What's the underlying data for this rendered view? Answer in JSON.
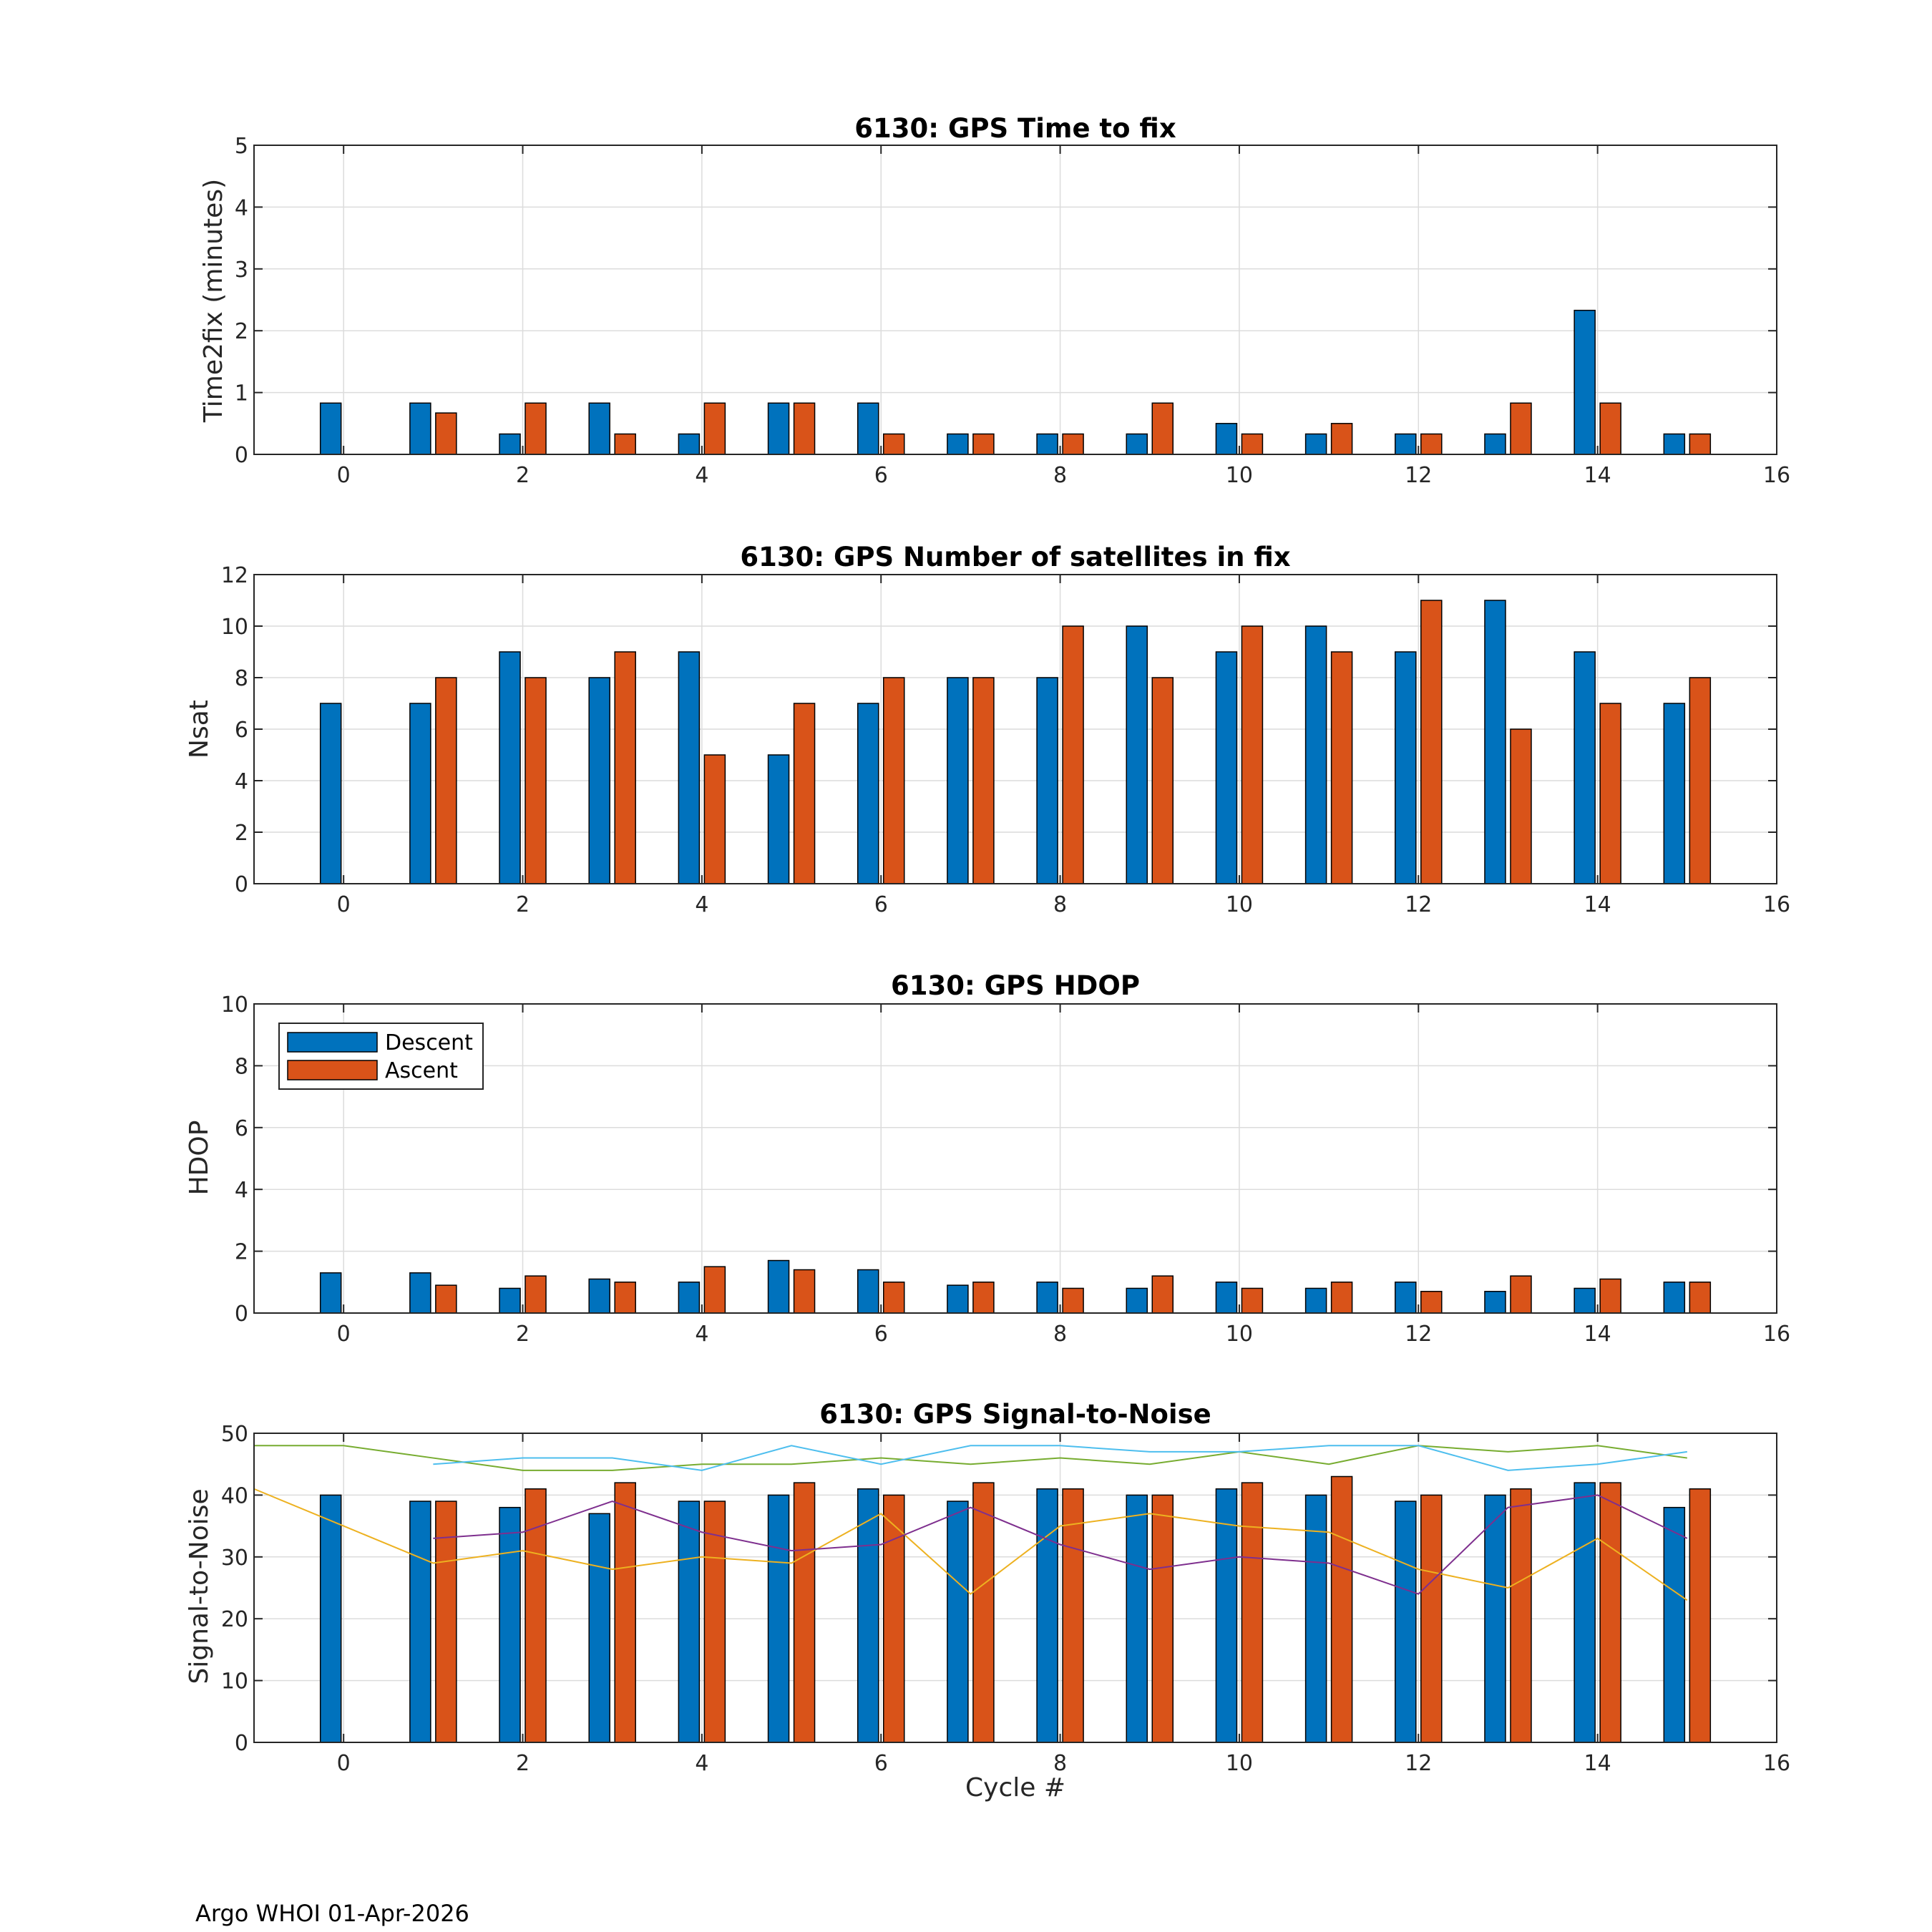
{
  "figure_title": "",
  "footer": "Argo WHOI 01-Apr-2026",
  "colors": {
    "descent": "#0072BD",
    "ascent": "#D95319",
    "snr_lines": [
      "#EDB120",
      "#7E2F8E",
      "#77AC30",
      "#4DBEEE"
    ]
  },
  "chart_data": [
    {
      "type": "bar",
      "title": "6130: GPS Time to fix",
      "xlabel": "",
      "ylabel": "Time2fix (minutes)",
      "xlim": [
        -1,
        16
      ],
      "ylim": [
        0,
        5
      ],
      "xticks": [
        0,
        2,
        4,
        6,
        8,
        10,
        12,
        14,
        16
      ],
      "yticks": [
        0,
        1,
        2,
        3,
        4,
        5
      ],
      "grid": true,
      "categories": [
        0,
        1,
        2,
        3,
        4,
        5,
        6,
        7,
        8,
        9,
        10,
        11,
        12,
        13,
        14,
        15
      ],
      "series": [
        {
          "name": "Descent",
          "values": [
            0.83,
            0.83,
            0.33,
            0.83,
            0.33,
            0.83,
            0.83,
            0.33,
            0.33,
            0.33,
            0.5,
            0.33,
            0.33,
            0.33,
            2.33,
            0.33
          ]
        },
        {
          "name": "Ascent",
          "values": [
            null,
            0.67,
            0.83,
            0.33,
            0.83,
            0.83,
            0.33,
            0.33,
            0.33,
            0.83,
            0.33,
            0.5,
            0.33,
            0.83,
            0.83,
            0.33
          ]
        }
      ]
    },
    {
      "type": "bar",
      "title": "6130: GPS Number of satellites in fix",
      "xlabel": "",
      "ylabel": "Nsat",
      "xlim": [
        -1,
        16
      ],
      "ylim": [
        0,
        12
      ],
      "xticks": [
        0,
        2,
        4,
        6,
        8,
        10,
        12,
        14,
        16
      ],
      "yticks": [
        0,
        2,
        4,
        6,
        8,
        10,
        12
      ],
      "grid": true,
      "categories": [
        0,
        1,
        2,
        3,
        4,
        5,
        6,
        7,
        8,
        9,
        10,
        11,
        12,
        13,
        14,
        15
      ],
      "series": [
        {
          "name": "Descent",
          "values": [
            7,
            7,
            9,
            8,
            9,
            5,
            7,
            8,
            8,
            10,
            9,
            10,
            9,
            11,
            9,
            7
          ]
        },
        {
          "name": "Ascent",
          "values": [
            null,
            8,
            8,
            9,
            5,
            7,
            8,
            8,
            10,
            8,
            10,
            9,
            11,
            6,
            7,
            8
          ]
        }
      ]
    },
    {
      "type": "bar",
      "title": "6130: GPS HDOP",
      "xlabel": "",
      "ylabel": "HDOP",
      "xlim": [
        -1,
        16
      ],
      "ylim": [
        0,
        10
      ],
      "xticks": [
        0,
        2,
        4,
        6,
        8,
        10,
        12,
        14,
        16
      ],
      "yticks": [
        0,
        2,
        4,
        6,
        8,
        10
      ],
      "grid": true,
      "legend": {
        "position": "top-left",
        "entries": [
          "Descent",
          "Ascent"
        ]
      },
      "categories": [
        0,
        1,
        2,
        3,
        4,
        5,
        6,
        7,
        8,
        9,
        10,
        11,
        12,
        13,
        14,
        15
      ],
      "series": [
        {
          "name": "Descent",
          "values": [
            1.3,
            1.3,
            0.8,
            1.1,
            1.0,
            1.7,
            1.4,
            0.9,
            1.0,
            0.8,
            1.0,
            0.8,
            1.0,
            0.7,
            0.8,
            1.0
          ]
        },
        {
          "name": "Ascent",
          "values": [
            null,
            0.9,
            1.2,
            1.0,
            1.5,
            1.4,
            1.0,
            1.0,
            0.8,
            1.2,
            0.8,
            1.0,
            0.7,
            1.2,
            1.1,
            1.0
          ]
        }
      ]
    },
    {
      "type": "bar",
      "title": "6130: GPS Signal-to-Noise",
      "xlabel": "Cycle #",
      "ylabel": "Signal-to-Noise",
      "xlim": [
        -1,
        16
      ],
      "ylim": [
        0,
        50
      ],
      "xticks": [
        0,
        2,
        4,
        6,
        8,
        10,
        12,
        14,
        16
      ],
      "yticks": [
        0,
        10,
        20,
        30,
        40,
        50
      ],
      "grid": true,
      "categories": [
        0,
        1,
        2,
        3,
        4,
        5,
        6,
        7,
        8,
        9,
        10,
        11,
        12,
        13,
        14,
        15
      ],
      "series": [
        {
          "name": "Descent",
          "values": [
            40,
            39,
            38,
            37,
            39,
            40,
            41,
            39,
            41,
            40,
            41,
            40,
            39,
            40,
            42,
            38
          ]
        },
        {
          "name": "Ascent",
          "values": [
            null,
            39,
            41,
            42,
            39,
            42,
            40,
            42,
            41,
            40,
            42,
            43,
            40,
            41,
            42,
            41
          ]
        }
      ],
      "lines": [
        {
          "name": "snr-line-1",
          "x": [
            -1,
            0,
            1,
            2,
            3,
            4,
            5,
            6,
            7,
            8,
            9,
            10,
            11,
            12,
            13,
            14,
            15
          ],
          "y": [
            41,
            35,
            29,
            31,
            28,
            30,
            29,
            37,
            24,
            35,
            37,
            35,
            34,
            28,
            25,
            33,
            23
          ]
        },
        {
          "name": "snr-line-2",
          "x": [
            1,
            2,
            3,
            4,
            5,
            6,
            7,
            8,
            9,
            10,
            11,
            12,
            13,
            14,
            15
          ],
          "y": [
            33,
            34,
            39,
            34,
            31,
            32,
            38,
            32,
            28,
            30,
            29,
            24,
            38,
            40,
            33
          ]
        },
        {
          "name": "snr-line-3",
          "x": [
            -1,
            0,
            1,
            2,
            3,
            4,
            5,
            6,
            7,
            8,
            9,
            10,
            11,
            12,
            13,
            14,
            15
          ],
          "y": [
            48,
            48,
            46,
            44,
            44,
            45,
            45,
            46,
            45,
            46,
            45,
            47,
            45,
            48,
            47,
            48,
            46
          ]
        },
        {
          "name": "snr-line-4",
          "x": [
            1,
            2,
            3,
            4,
            5,
            6,
            7,
            8,
            9,
            10,
            11,
            12,
            13,
            14,
            15
          ],
          "y": [
            45,
            46,
            46,
            44,
            48,
            45,
            48,
            48,
            47,
            47,
            48,
            48,
            44,
            45,
            47
          ]
        }
      ]
    }
  ]
}
